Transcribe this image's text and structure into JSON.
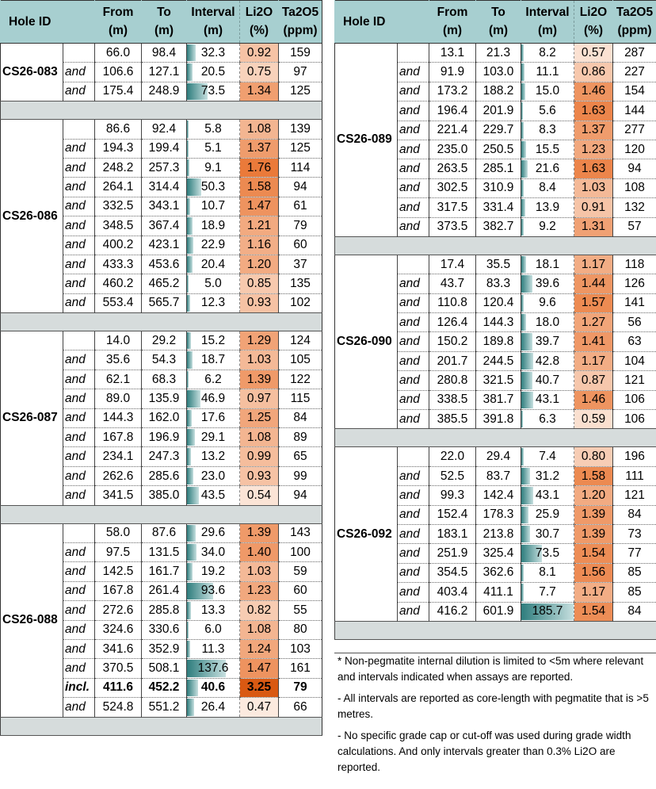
{
  "headers": {
    "hole_id": "Hole ID",
    "from": [
      "From",
      "(m)"
    ],
    "to": [
      "To",
      "(m)"
    ],
    "interval": [
      "Interval",
      "(m)"
    ],
    "li2o": [
      "Li2O",
      "(%)"
    ],
    "ta2o5": [
      "Ta2O5",
      "(ppm)"
    ]
  },
  "colors": {
    "header_bg": "#a7cfd0",
    "separator_bg": "#d6dcdc",
    "li2o_heat_low": "#fdeee6",
    "li2o_heat_high": "#e05a12",
    "interval_bar": "#2e7d7d"
  },
  "left_holes": [
    {
      "id": "CS26-083",
      "rows": [
        [
          "",
          "66.0",
          "98.4",
          "32.3",
          "0.92",
          "159"
        ],
        [
          "and",
          "106.6",
          "127.1",
          "20.5",
          "0.75",
          "97"
        ],
        [
          "and",
          "175.4",
          "248.9",
          "73.5",
          "1.34",
          "125"
        ]
      ]
    },
    {
      "id": "CS26-086",
      "rows": [
        [
          "",
          "86.6",
          "92.4",
          "5.8",
          "1.08",
          "139"
        ],
        [
          "and",
          "194.3",
          "199.4",
          "5.1",
          "1.37",
          "125"
        ],
        [
          "and",
          "248.2",
          "257.3",
          "9.1",
          "1.76",
          "114"
        ],
        [
          "and",
          "264.1",
          "314.4",
          "50.3",
          "1.58",
          "94"
        ],
        [
          "and",
          "332.5",
          "343.1",
          "10.7",
          "1.47",
          "61"
        ],
        [
          "and",
          "348.5",
          "367.4",
          "18.9",
          "1.21",
          "79"
        ],
        [
          "and",
          "400.2",
          "423.1",
          "22.9",
          "1.16",
          "60"
        ],
        [
          "and",
          "433.3",
          "453.6",
          "20.4",
          "1.20",
          "37"
        ],
        [
          "and",
          "460.2",
          "465.2",
          "5.0",
          "0.85",
          "135"
        ],
        [
          "and",
          "553.4",
          "565.7",
          "12.3",
          "0.93",
          "102"
        ]
      ]
    },
    {
      "id": "CS26-087",
      "rows": [
        [
          "",
          "14.0",
          "29.2",
          "15.2",
          "1.29",
          "124"
        ],
        [
          "and",
          "35.6",
          "54.3",
          "18.7",
          "1.03",
          "105"
        ],
        [
          "and",
          "62.1",
          "68.3",
          "6.2",
          "1.39",
          "122"
        ],
        [
          "and",
          "89.0",
          "135.9",
          "46.9",
          "0.97",
          "115"
        ],
        [
          "and",
          "144.3",
          "162.0",
          "17.6",
          "1.25",
          "84"
        ],
        [
          "and",
          "167.8",
          "196.9",
          "29.1",
          "1.08",
          "89"
        ],
        [
          "and",
          "234.1",
          "247.3",
          "13.2",
          "0.99",
          "65"
        ],
        [
          "and",
          "262.6",
          "285.6",
          "23.0",
          "0.93",
          "99"
        ],
        [
          "and",
          "341.5",
          "385.0",
          "43.5",
          "0.54",
          "94"
        ]
      ]
    },
    {
      "id": "CS26-088",
      "rows": [
        [
          "",
          "58.0",
          "87.6",
          "29.6",
          "1.39",
          "143"
        ],
        [
          "and",
          "97.5",
          "131.5",
          "34.0",
          "1.40",
          "100"
        ],
        [
          "and",
          "142.5",
          "161.7",
          "19.2",
          "1.03",
          "59"
        ],
        [
          "and",
          "167.8",
          "261.4",
          "93.6",
          "1.23",
          "60"
        ],
        [
          "and",
          "272.6",
          "285.8",
          "13.3",
          "0.82",
          "55"
        ],
        [
          "and",
          "324.6",
          "330.6",
          "6.0",
          "1.08",
          "80"
        ],
        [
          "and",
          "341.6",
          "352.9",
          "11.3",
          "1.24",
          "103"
        ],
        [
          "and",
          "370.5",
          "508.1",
          "137.6",
          "1.47",
          "161"
        ],
        [
          "incl.",
          "411.6",
          "452.2",
          "40.6",
          "3.25",
          "79"
        ],
        [
          "and",
          "524.8",
          "551.2",
          "26.4",
          "0.47",
          "66"
        ]
      ]
    }
  ],
  "right_holes": [
    {
      "id": "CS26-089",
      "rows": [
        [
          "",
          "13.1",
          "21.3",
          "8.2",
          "0.57",
          "287"
        ],
        [
          "and",
          "91.9",
          "103.0",
          "11.1",
          "0.86",
          "227"
        ],
        [
          "and",
          "173.2",
          "188.2",
          "15.0",
          "1.46",
          "154"
        ],
        [
          "and",
          "196.4",
          "201.9",
          "5.6",
          "1.63",
          "144"
        ],
        [
          "and",
          "221.4",
          "229.7",
          "8.3",
          "1.37",
          "277"
        ],
        [
          "and",
          "235.0",
          "250.5",
          "15.5",
          "1.23",
          "120"
        ],
        [
          "and",
          "263.5",
          "285.1",
          "21.6",
          "1.63",
          "94"
        ],
        [
          "and",
          "302.5",
          "310.9",
          "8.4",
          "1.03",
          "108"
        ],
        [
          "and",
          "317.5",
          "331.4",
          "13.9",
          "0.91",
          "132"
        ],
        [
          "and",
          "373.5",
          "382.7",
          "9.2",
          "1.31",
          "57"
        ]
      ]
    },
    {
      "id": "CS26-090",
      "rows": [
        [
          "",
          "17.4",
          "35.5",
          "18.1",
          "1.17",
          "118"
        ],
        [
          "and",
          "43.7",
          "83.3",
          "39.6",
          "1.44",
          "126"
        ],
        [
          "and",
          "110.8",
          "120.4",
          "9.6",
          "1.57",
          "141"
        ],
        [
          "and",
          "126.4",
          "144.3",
          "18.0",
          "1.27",
          "56"
        ],
        [
          "and",
          "150.2",
          "189.8",
          "39.7",
          "1.41",
          "63"
        ],
        [
          "and",
          "201.7",
          "244.5",
          "42.8",
          "1.17",
          "104"
        ],
        [
          "and",
          "280.8",
          "321.5",
          "40.7",
          "0.87",
          "121"
        ],
        [
          "and",
          "338.5",
          "381.7",
          "43.1",
          "1.46",
          "106"
        ],
        [
          "and",
          "385.5",
          "391.8",
          "6.3",
          "0.59",
          "106"
        ]
      ]
    },
    {
      "id": "CS26-092",
      "rows": [
        [
          "",
          "22.0",
          "29.4",
          "7.4",
          "0.80",
          "196"
        ],
        [
          "and",
          "52.5",
          "83.7",
          "31.2",
          "1.58",
          "111"
        ],
        [
          "and",
          "99.3",
          "142.4",
          "43.1",
          "1.20",
          "121"
        ],
        [
          "and",
          "152.4",
          "178.3",
          "25.9",
          "1.39",
          "84"
        ],
        [
          "and",
          "183.1",
          "213.8",
          "30.7",
          "1.39",
          "73"
        ],
        [
          "and",
          "251.9",
          "325.4",
          "73.5",
          "1.54",
          "77"
        ],
        [
          "and",
          "354.5",
          "362.6",
          "8.1",
          "1.56",
          "85"
        ],
        [
          "and",
          "403.4",
          "411.1",
          "7.7",
          "1.17",
          "85"
        ],
        [
          "and",
          "416.2",
          "601.9",
          "185.7",
          "1.54",
          "84"
        ]
      ]
    }
  ],
  "notes": [
    "* Non-pegmatite internal dilution is limited to <5m where relevant and intervals indicated when assays are reported.",
    "- All intervals are reported as core-length with pegmatite that is >5 metres.",
    "- No specific grade cap or cut-off was used during grade width calculations. And only intervals greater than 0.3% Li2O are reported."
  ]
}
